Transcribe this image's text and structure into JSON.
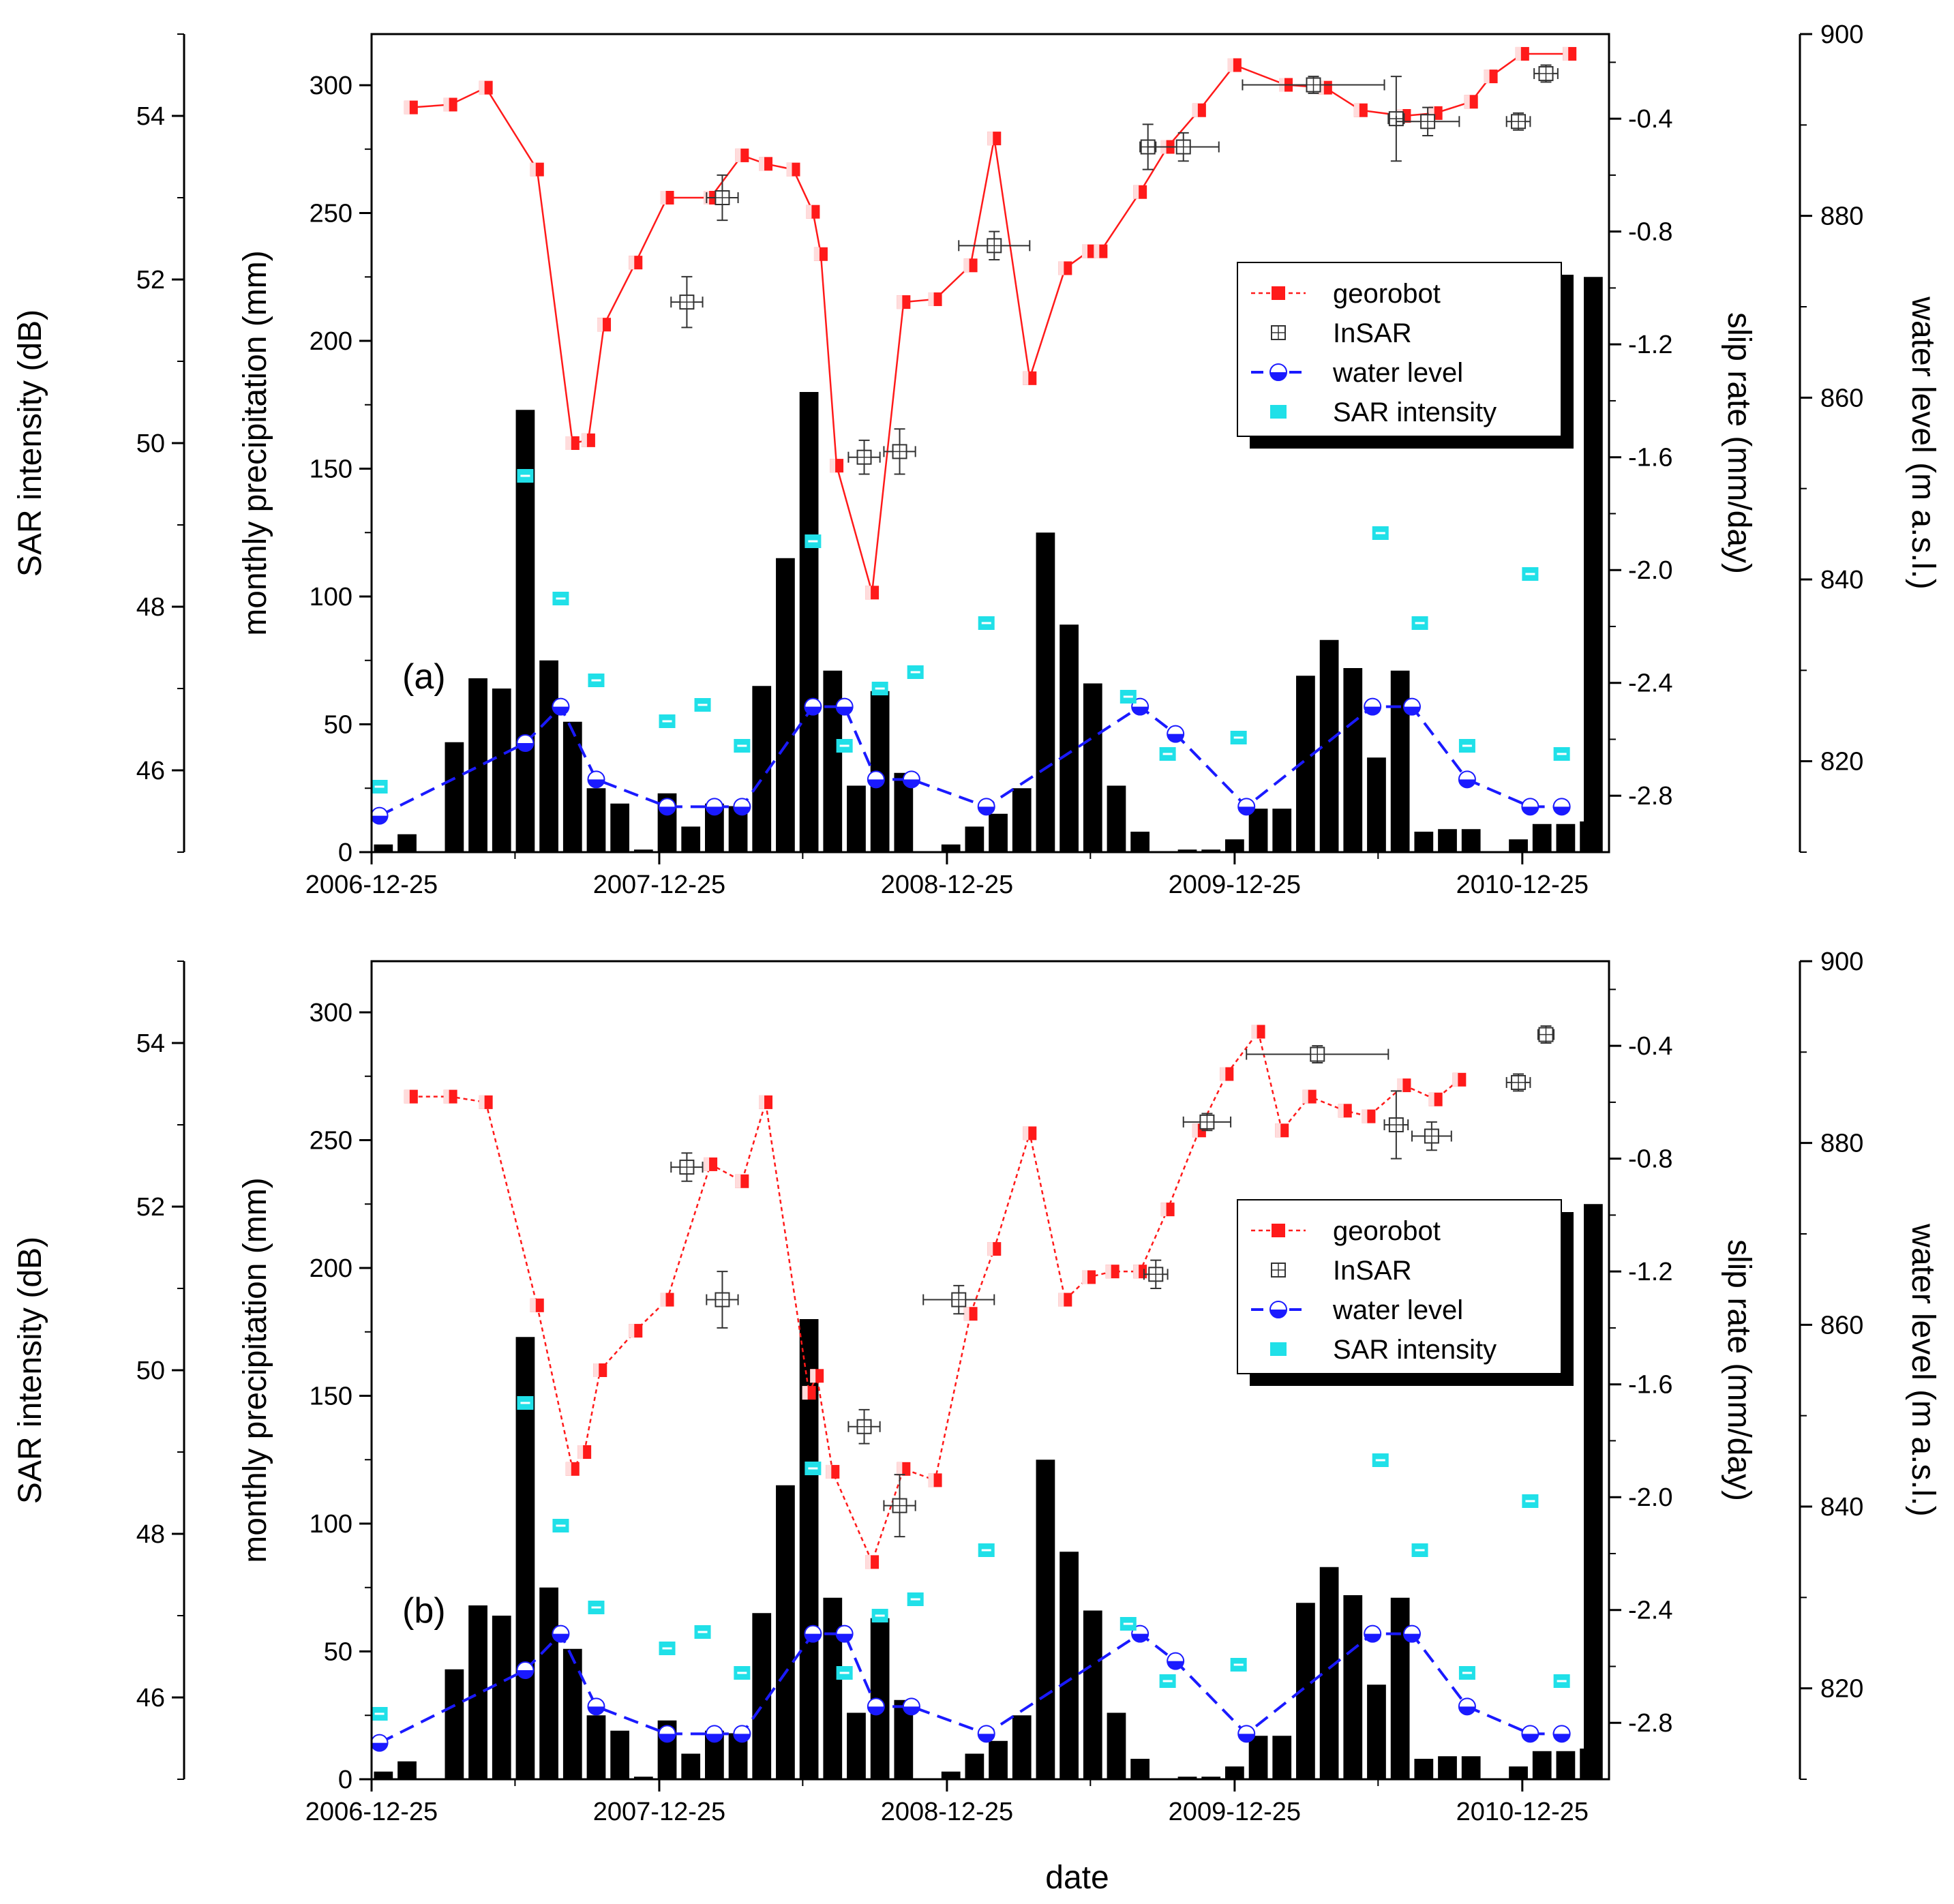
{
  "colors": {
    "georobot": "#ff1a1a",
    "insar": "#333333",
    "water": "#1a1aff",
    "sar": "#20e0e8",
    "bar": "#000000"
  },
  "axes": {
    "date_label": "date",
    "precip_label": "monthly precipitation (mm)",
    "sar_label": "SAR intensity (dB)",
    "slip_label": "slip rate (mm/day)",
    "water_label": "water level (m a.s.l.)",
    "date_ticks": [
      "2006-12-25",
      "2007-12-25",
      "2008-12-25",
      "2009-12-25",
      "2010-12-25"
    ],
    "precip_ticks": [
      "0",
      "50",
      "100",
      "150",
      "200",
      "250",
      "300"
    ],
    "sar_ticks": [
      "46",
      "48",
      "50",
      "52",
      "54"
    ],
    "slip_ticks": [
      "-2.8",
      "-2.4",
      "-2.0",
      "-1.6",
      "-1.2",
      "-0.8",
      "-0.4"
    ],
    "water_ticks": [
      "820",
      "840",
      "860",
      "880",
      "900"
    ]
  },
  "legend": {
    "georobot": "georobot",
    "insar": "InSAR",
    "water": "water level",
    "sar": "SAR intensity"
  },
  "chart_data": {
    "type": "bar",
    "x_range_days": [
      0,
      1570
    ],
    "ylim_precip": [
      0,
      320
    ],
    "ylim_sar": [
      45,
      55
    ],
    "ylim_slip": [
      -3.0,
      -0.1
    ],
    "ylim_water": [
      810,
      900
    ],
    "precipitation": {
      "x": [
        15,
        45,
        105,
        135,
        165,
        195,
        225,
        255,
        285,
        315,
        345,
        375,
        405,
        435,
        465,
        495,
        525,
        555,
        585,
        615,
        645,
        675,
        705,
        735,
        765,
        795,
        825,
        855,
        885,
        915,
        945,
        975,
        1005,
        1035,
        1065,
        1095,
        1125,
        1155,
        1185,
        1215,
        1245,
        1275,
        1305,
        1335,
        1365,
        1395,
        1425,
        1455,
        1485,
        1515,
        1545
      ],
      "values": [
        3,
        7,
        43,
        68,
        64,
        173,
        75,
        51,
        25,
        19,
        1,
        23,
        10,
        19,
        18,
        65,
        115,
        180,
        71,
        26,
        63,
        31,
        0,
        3,
        10,
        15,
        25,
        125,
        89,
        66,
        26,
        8,
        0,
        1,
        1,
        5,
        17,
        17,
        69,
        83,
        72,
        37,
        71,
        8,
        9,
        9,
        0,
        5,
        11,
        11,
        12
      ],
      "tall_bar_x": 1550,
      "tall_bar_value": 225
    },
    "water_level": {
      "x": [
        10,
        195,
        240,
        285,
        375,
        435,
        470,
        560,
        600,
        640,
        685,
        780,
        975,
        1020,
        1110,
        1270,
        1320,
        1390,
        1470,
        1510
      ],
      "values": [
        814,
        822,
        826,
        818,
        815,
        815,
        815,
        826,
        826,
        818,
        818,
        815,
        826,
        823,
        815,
        826,
        826,
        818,
        815,
        815
      ]
    },
    "sar_intensity": {
      "x": [
        10,
        195,
        240,
        285,
        375,
        420,
        470,
        560,
        600,
        645,
        690,
        780,
        960,
        1010,
        1100,
        1280,
        1330,
        1390,
        1470,
        1510
      ],
      "values": [
        45.8,
        49.6,
        48.1,
        47.1,
        46.6,
        46.8,
        46.3,
        48.8,
        46.3,
        47.0,
        47.2,
        47.8,
        46.9,
        46.2,
        46.4,
        48.9,
        47.8,
        46.3,
        48.4,
        46.2
      ]
    },
    "series": [
      {
        "panel": "(a)",
        "georobot": {
          "x": [
            50,
            100,
            145,
            210,
            255,
            275,
            295,
            335,
            375,
            430,
            470,
            500,
            535,
            560,
            570,
            590,
            635,
            675,
            715,
            760,
            790,
            835,
            880,
            910,
            925,
            975,
            1010,
            1050,
            1095,
            1160,
            1210,
            1255,
            1310,
            1350,
            1395,
            1420,
            1460,
            1520
          ],
          "values": [
            -0.36,
            -0.35,
            -0.29,
            -0.58,
            -1.55,
            -1.54,
            -1.13,
            -0.91,
            -0.68,
            -0.68,
            -0.53,
            -0.56,
            -0.58,
            -0.73,
            -0.88,
            -1.63,
            -2.08,
            -1.05,
            -1.04,
            -0.92,
            -0.47,
            -1.32,
            -0.93,
            -0.87,
            -0.87,
            -0.66,
            -0.5,
            -0.37,
            -0.21,
            -0.28,
            -0.29,
            -0.37,
            -0.39,
            -0.38,
            -0.34,
            -0.25,
            -0.17,
            -0.17
          ],
          "insar": [
            {
              "x": 400,
              "y": -1.05,
              "dx": 20,
              "dy": 0.09
            },
            {
              "x": 445,
              "y": -0.68,
              "dx": 20,
              "dy": 0.08
            },
            {
              "x": 625,
              "y": -1.6,
              "dx": 20,
              "dy": 0.06
            },
            {
              "x": 670,
              "y": -1.58,
              "dx": 20,
              "dy": 0.08
            },
            {
              "x": 790,
              "y": -0.85,
              "dx": 45,
              "dy": 0.05
            },
            {
              "x": 985,
              "y": -0.5,
              "dx": 10,
              "dy": 0.08
            },
            {
              "x": 1030,
              "y": -0.5,
              "dx": 45,
              "dy": 0.05
            },
            {
              "x": 1195,
              "y": -0.28,
              "dx": 90,
              "dy": 0.03
            },
            {
              "x": 1300,
              "y": -0.4,
              "dx": 10,
              "dy": 0.15
            },
            {
              "x": 1340,
              "y": -0.41,
              "dx": 40,
              "dy": 0.05
            },
            {
              "x": 1455,
              "y": -0.41,
              "dx": 15,
              "dy": 0.03
            },
            {
              "x": 1490,
              "y": -0.24,
              "dx": 15,
              "dy": 0.03
            }
          ]
        }
      },
      {
        "panel": "(b)",
        "georobot": {
          "x": [
            50,
            100,
            145,
            210,
            255,
            270,
            290,
            335,
            375,
            430,
            470,
            500,
            555,
            565,
            585,
            635,
            675,
            715,
            760,
            790,
            835,
            880,
            910,
            940,
            975,
            1010,
            1050,
            1085,
            1125,
            1155,
            1190,
            1235,
            1265,
            1310,
            1350,
            1380
          ],
          "values": [
            -0.58,
            -0.58,
            -0.6,
            -1.32,
            -1.9,
            -1.84,
            -1.55,
            -1.41,
            -1.3,
            -0.82,
            -0.88,
            -0.6,
            -1.63,
            -1.57,
            -1.91,
            -2.23,
            -1.9,
            -1.94,
            -1.35,
            -1.12,
            -0.71,
            -1.3,
            -1.22,
            -1.2,
            -1.2,
            -0.98,
            -0.7,
            -0.5,
            -0.35,
            -0.7,
            -0.58,
            -0.63,
            -0.65,
            -0.54,
            -0.59,
            -0.52
          ]
        },
        "insar": [
          {
            "x": 400,
            "y": -0.83,
            "dx": 20,
            "dy": 0.05
          },
          {
            "x": 445,
            "y": -1.3,
            "dx": 20,
            "dy": 0.1
          },
          {
            "x": 625,
            "y": -1.75,
            "dx": 20,
            "dy": 0.06
          },
          {
            "x": 670,
            "y": -2.03,
            "dx": 20,
            "dy": 0.11
          },
          {
            "x": 745,
            "y": -1.3,
            "dx": 45,
            "dy": 0.05
          },
          {
            "x": 995,
            "y": -1.21,
            "dx": 15,
            "dy": 0.05
          },
          {
            "x": 1060,
            "y": -0.67,
            "dx": 30,
            "dy": 0.03
          },
          {
            "x": 1200,
            "y": -0.43,
            "dx": 90,
            "dy": 0.03
          },
          {
            "x": 1300,
            "y": -0.68,
            "dx": 15,
            "dy": 0.12
          },
          {
            "x": 1345,
            "y": -0.72,
            "dx": 25,
            "dy": 0.05
          },
          {
            "x": 1455,
            "y": -0.53,
            "dx": 15,
            "dy": 0.03
          },
          {
            "x": 1490,
            "y": -0.36,
            "dx": 10,
            "dy": 0.03
          }
        ]
      }
    ]
  }
}
